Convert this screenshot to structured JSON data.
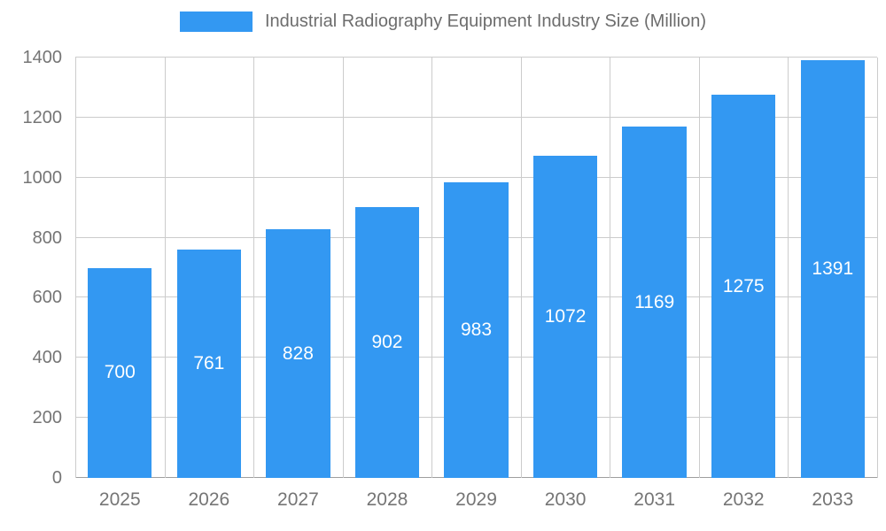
{
  "chart_data": {
    "type": "bar",
    "title": "Industrial Radiography Equipment Industry Size (Million)",
    "categories": [
      "2025",
      "2026",
      "2027",
      "2028",
      "2029",
      "2030",
      "2031",
      "2032",
      "2033"
    ],
    "values": [
      700,
      761,
      828,
      902,
      983,
      1072,
      1169,
      1275,
      1391
    ],
    "xlabel": "",
    "ylabel": "",
    "ylim": [
      0,
      1400
    ],
    "yticks": [
      0,
      200,
      400,
      600,
      800,
      1000,
      1200,
      1400
    ],
    "grid": true,
    "legend_position": "top",
    "bar_label_position": "inside-center"
  },
  "colors": {
    "bar": "#3398F2",
    "bar_label": "#ffffff",
    "axis_text": "#757575",
    "grid_line": "#cccccc",
    "axis_line": "#9e9e9e",
    "title_text": "#6d6d6d",
    "background": "#ffffff"
  }
}
